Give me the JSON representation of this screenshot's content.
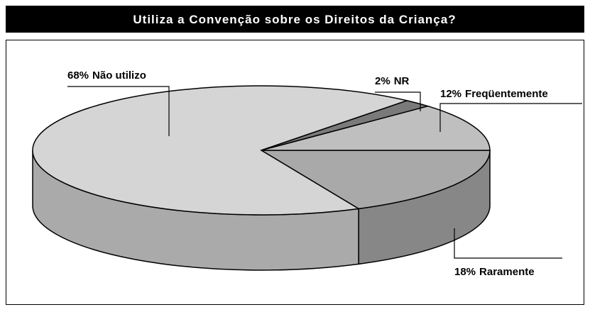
{
  "chart_data": {
    "type": "pie3d",
    "title": "Utiliza a Convenção sobre os Direitos da Criança?",
    "categories": [
      "Raramente",
      "Não utilizo",
      "NR",
      "Freqüentemente"
    ],
    "values": [
      18,
      68,
      2,
      12
    ],
    "value_labels": [
      "18%",
      "68%",
      "2%",
      "12%"
    ],
    "colors": [
      "#a9a9a9",
      "#d5d5d5",
      "#7a7a7a",
      "#bfbfbf"
    ]
  }
}
